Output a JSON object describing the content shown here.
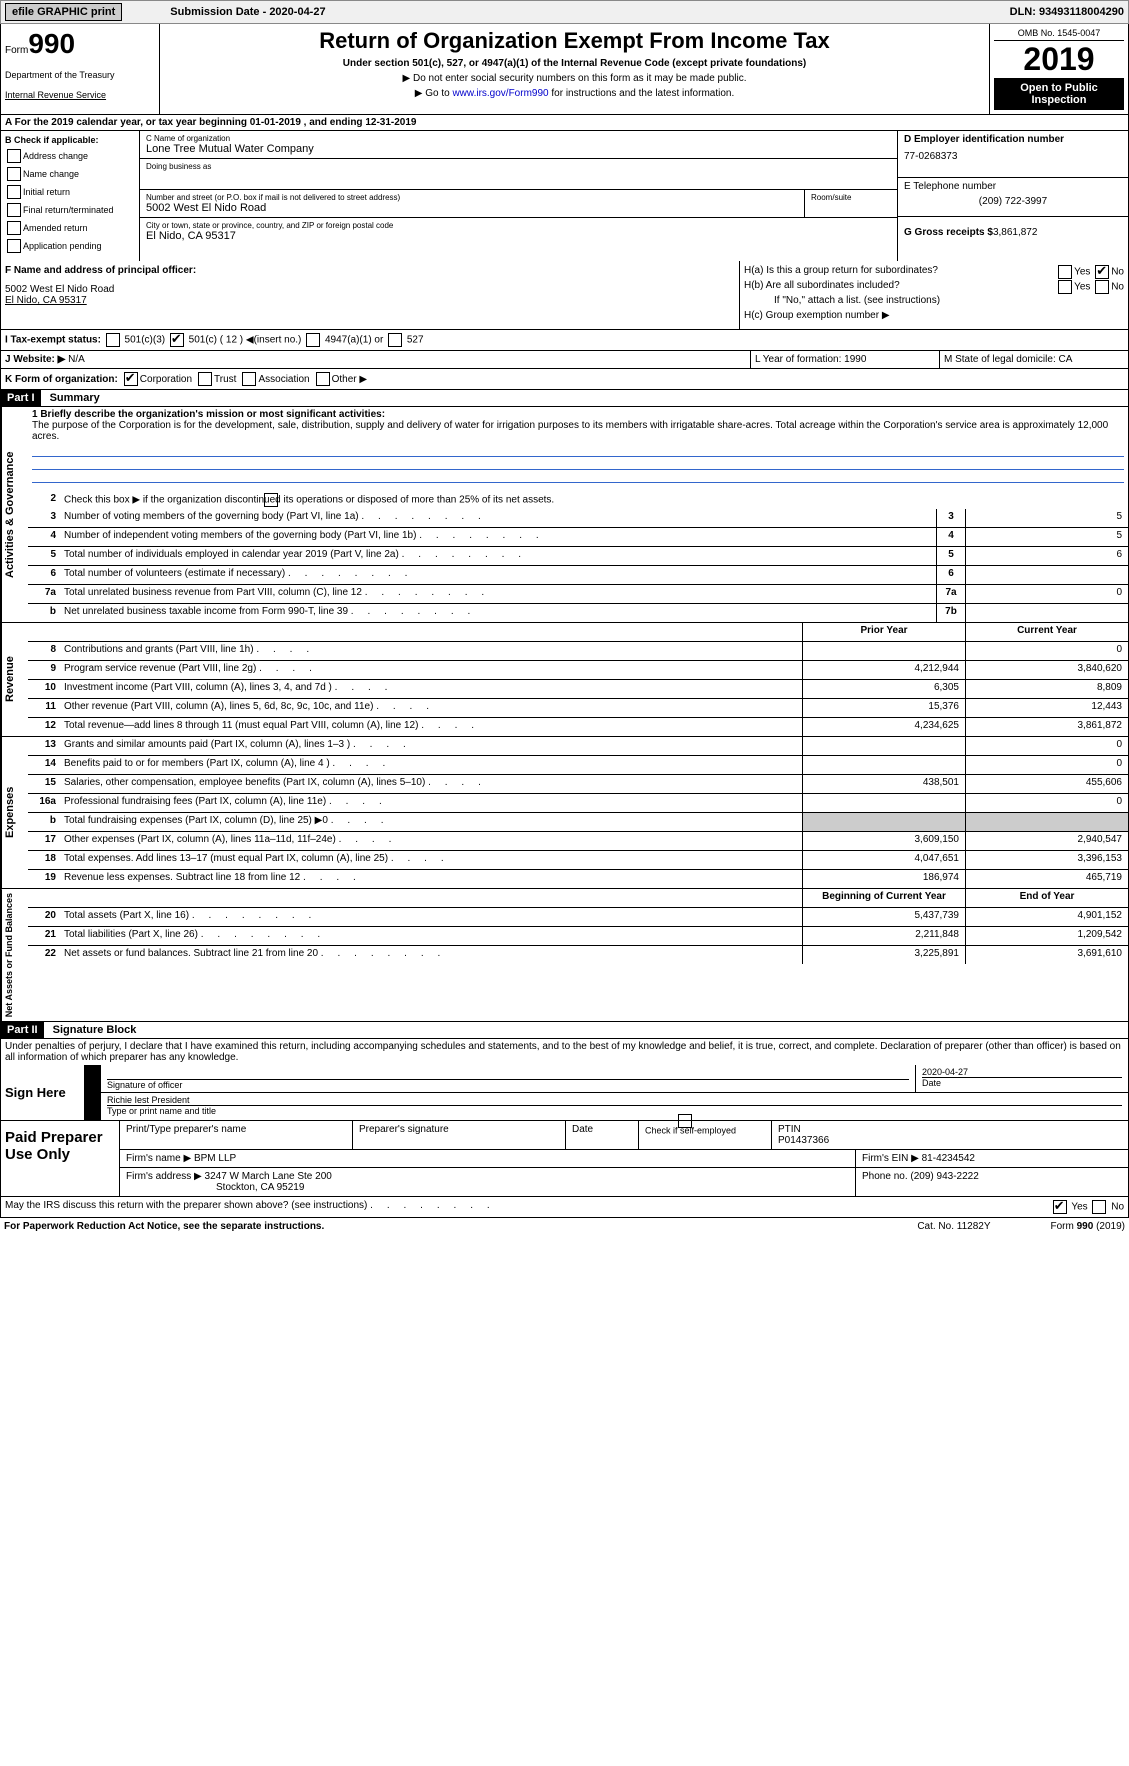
{
  "topbar": {
    "efile": "efile GRAPHIC print",
    "submission": "Submission Date - 2020-04-27",
    "dln": "DLN: 93493118004290"
  },
  "header": {
    "form_prefix": "Form",
    "form_number": "990",
    "dept1": "Department of the Treasury",
    "dept2": "Internal Revenue Service",
    "title": "Return of Organization Exempt From Income Tax",
    "subtitle": "Under section 501(c), 527, or 4947(a)(1) of the Internal Revenue Code (except private foundations)",
    "instr1": "▶ Do not enter social security numbers on this form as it may be made public.",
    "instr2_pre": "▶ Go to ",
    "instr2_link": "www.irs.gov/Form990",
    "instr2_post": " for instructions and the latest information.",
    "omb": "OMB No. 1545-0047",
    "year": "2019",
    "open_public": "Open to Public Inspection"
  },
  "row_a": "A   For the 2019 calendar year, or tax year beginning 01-01-2019        , and ending 12-31-2019",
  "section_b": {
    "title": "B Check if applicable:",
    "items": [
      "Address change",
      "Name change",
      "Initial return",
      "Final return/terminated",
      "Amended return",
      "Application pending"
    ]
  },
  "section_c": {
    "name_label": "C Name of organization",
    "name": "Lone Tree Mutual Water Company",
    "dba_label": "Doing business as",
    "dba": "",
    "street_label": "Number and street (or P.O. box if mail is not delivered to street address)",
    "street": "5002 West El Nido Road",
    "room_label": "Room/suite",
    "city_label": "City or town, state or province, country, and ZIP or foreign postal code",
    "city": "El Nido, CA  95317"
  },
  "section_d": {
    "ein_label": "D Employer identification number",
    "ein": "77-0268373",
    "phone_label": "E Telephone number",
    "phone": "(209) 722-3997",
    "gross_label": "G Gross receipts $",
    "gross": "3,861,872"
  },
  "section_f": {
    "label": "F  Name and address of principal officer:",
    "line1": "5002 West El Nido Road",
    "line2": "El Nido, CA  95317"
  },
  "section_h": {
    "ha": "H(a)    Is this a group return for subordinates?",
    "hb": "H(b)    Are all subordinates included?",
    "hb_note": "If \"No,\" attach a list. (see instructions)",
    "hc": "H(c)    Group exemption number ▶"
  },
  "row_i": {
    "label": "I     Tax-exempt status:",
    "opts": [
      "501(c)(3)",
      "501(c) ( 12 ) ◀(insert no.)",
      "4947(a)(1) or",
      "527"
    ]
  },
  "row_j": {
    "label": "J    Website: ▶",
    "value": "N/A"
  },
  "row_k": {
    "label": "K Form of organization:",
    "opts": [
      "Corporation",
      "Trust",
      "Association",
      "Other ▶"
    ]
  },
  "row_lm": {
    "l": "L Year of formation: 1990",
    "m": "M State of legal domicile: CA"
  },
  "part1": {
    "header": "Part I",
    "title": "Summary",
    "line1_label": "1  Briefly describe the organization's mission or most significant activities:",
    "line1_text": "The purpose of the Corporation is for the development, sale, distribution, supply and delivery of water for irrigation purposes to its members with irrigatable share-acres. Total acreage within the Corporation's service area is approximately 12,000 acres.",
    "line2": "Check this box ▶       if the organization discontinued its operations or disposed of more than 25% of its net assets.",
    "rows_top": [
      {
        "num": "3",
        "text": "Number of voting members of the governing body (Part VI, line 1a)",
        "box": "3",
        "val": "5"
      },
      {
        "num": "4",
        "text": "Number of independent voting members of the governing body (Part VI, line 1b)",
        "box": "4",
        "val": "5"
      },
      {
        "num": "5",
        "text": "Total number of individuals employed in calendar year 2019 (Part V, line 2a)",
        "box": "5",
        "val": "6"
      },
      {
        "num": "6",
        "text": "Total number of volunteers (estimate if necessary)",
        "box": "6",
        "val": ""
      },
      {
        "num": "7a",
        "text": "Total unrelated business revenue from Part VIII, column (C), line 12",
        "box": "7a",
        "val": "0"
      },
      {
        "num": "b",
        "text": "Net unrelated business taxable income from Form 990-T, line 39",
        "box": "7b",
        "val": ""
      }
    ],
    "col_headers": {
      "prior": "Prior Year",
      "current": "Current Year"
    },
    "revenue_rows": [
      {
        "num": "8",
        "text": "Contributions and grants (Part VIII, line 1h)",
        "prior": "",
        "current": "0"
      },
      {
        "num": "9",
        "text": "Program service revenue (Part VIII, line 2g)",
        "prior": "4,212,944",
        "current": "3,840,620"
      },
      {
        "num": "10",
        "text": "Investment income (Part VIII, column (A), lines 3, 4, and 7d )",
        "prior": "6,305",
        "current": "8,809"
      },
      {
        "num": "11",
        "text": "Other revenue (Part VIII, column (A), lines 5, 6d, 8c, 9c, 10c, and 11e)",
        "prior": "15,376",
        "current": "12,443"
      },
      {
        "num": "12",
        "text": "Total revenue—add lines 8 through 11 (must equal Part VIII, column (A), line 12)",
        "prior": "4,234,625",
        "current": "3,861,872"
      }
    ],
    "expense_rows": [
      {
        "num": "13",
        "text": "Grants and similar amounts paid (Part IX, column (A), lines 1–3 )",
        "prior": "",
        "current": "0"
      },
      {
        "num": "14",
        "text": "Benefits paid to or for members (Part IX, column (A), line 4 )",
        "prior": "",
        "current": "0"
      },
      {
        "num": "15",
        "text": "Salaries, other compensation, employee benefits (Part IX, column (A), lines 5–10)",
        "prior": "438,501",
        "current": "455,606"
      },
      {
        "num": "16a",
        "text": "Professional fundraising fees (Part IX, column (A), line 11e)",
        "prior": "",
        "current": "0"
      },
      {
        "num": "b",
        "text": "Total fundraising expenses (Part IX, column (D), line 25) ▶0",
        "prior": "grey",
        "current": "grey"
      },
      {
        "num": "17",
        "text": "Other expenses (Part IX, column (A), lines 11a–11d, 11f–24e)",
        "prior": "3,609,150",
        "current": "2,940,547"
      },
      {
        "num": "18",
        "text": "Total expenses. Add lines 13–17 (must equal Part IX, column (A), line 25)",
        "prior": "4,047,651",
        "current": "3,396,153"
      },
      {
        "num": "19",
        "text": "Revenue less expenses. Subtract line 18 from line 12",
        "prior": "186,974",
        "current": "465,719"
      }
    ],
    "assets_headers": {
      "begin": "Beginning of Current Year",
      "end": "End of Year"
    },
    "assets_rows": [
      {
        "num": "20",
        "text": "Total assets (Part X, line 16)",
        "prior": "5,437,739",
        "current": "4,901,152"
      },
      {
        "num": "21",
        "text": "Total liabilities (Part X, line 26)",
        "prior": "2,211,848",
        "current": "1,209,542"
      },
      {
        "num": "22",
        "text": "Net assets or fund balances. Subtract line 21 from line 20",
        "prior": "3,225,891",
        "current": "3,691,610"
      }
    ]
  },
  "part2": {
    "header": "Part II",
    "title": "Signature Block",
    "declaration": "Under penalties of perjury, I declare that I have examined this return, including accompanying schedules and statements, and to the best of my knowledge and belief, it is true, correct, and complete. Declaration of preparer (other than officer) is based on all information of which preparer has any knowledge.",
    "sign_here": "Sign Here",
    "sig_officer": "Signature of officer",
    "sig_date": "2020-04-27",
    "date_label": "Date",
    "name_title": "Richie Iest  President",
    "name_title_label": "Type or print name and title"
  },
  "paid": {
    "label": "Paid Preparer Use Only",
    "h1": "Print/Type preparer's name",
    "h2": "Preparer's signature",
    "h3": "Date",
    "h4_check": "Check         if self-employed",
    "h5": "PTIN",
    "ptin": "P01437366",
    "firm_name_label": "Firm's name     ▶",
    "firm_name": "BPM LLP",
    "firm_ein_label": "Firm's EIN ▶",
    "firm_ein": "81-4234542",
    "firm_addr_label": "Firm's address ▶",
    "firm_addr1": "3247 W March Lane Ste 200",
    "firm_addr2": "Stockton, CA  95219",
    "phone_label": "Phone no.",
    "phone": "(209) 943-2222"
  },
  "footer": {
    "discuss": "May the IRS discuss this return with the preparer shown above? (see instructions)",
    "paperwork": "For Paperwork Reduction Act Notice, see the separate instructions.",
    "cat": "Cat. No. 11282Y",
    "form": "Form 990 (2019)"
  },
  "vtabs": {
    "gov": "Activities & Governance",
    "rev": "Revenue",
    "exp": "Expenses",
    "net": "Net Assets or Fund Balances"
  }
}
